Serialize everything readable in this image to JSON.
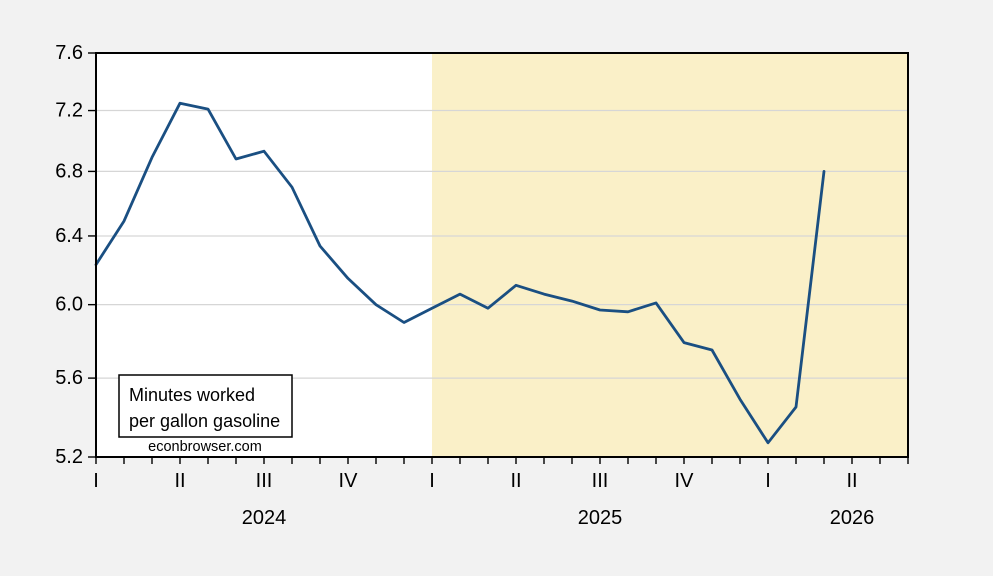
{
  "figure": {
    "background_color": "#f2f2f2",
    "plot_background_color": "#ffffff",
    "grid_color": "#d6d6d6",
    "axis_color": "#000000"
  },
  "chart_data": {
    "type": "line",
    "title": "Minutes worked per gallon gasoline",
    "legend": {
      "line1": "Minutes worked",
      "line2": "per gallon gasoline"
    },
    "watermark": "econbrowser.com",
    "y_axis": {
      "scale": "log",
      "min": 5.2,
      "max": 7.6,
      "tick_values": [
        7.6,
        7.2,
        6.8,
        6.4,
        6.0,
        5.6,
        5.2
      ],
      "tick_labels": [
        "7.6",
        "7.2",
        "6.8",
        "6.4",
        "6.0",
        "5.6",
        "5.2"
      ]
    },
    "x_axis": {
      "unit": "month",
      "start_label": "2024-01",
      "axis_months": 29,
      "quarter_ticks": [
        {
          "label": "I",
          "month": 0
        },
        {
          "label": "II",
          "month": 3
        },
        {
          "label": "III",
          "month": 6
        },
        {
          "label": "IV",
          "month": 9
        },
        {
          "label": "I",
          "month": 12
        },
        {
          "label": "II",
          "month": 15
        },
        {
          "label": "III",
          "month": 18
        },
        {
          "label": "IV",
          "month": 21
        },
        {
          "label": "I",
          "month": 24
        },
        {
          "label": "II",
          "month": 27
        }
      ],
      "year_labels": [
        {
          "label": "2024",
          "center_month": 6
        },
        {
          "label": "2025",
          "center_month": 18
        },
        {
          "label": "2026",
          "center_month": 27
        }
      ]
    },
    "shade_region": {
      "start_month": 12,
      "end_month": 29,
      "color": "#faf0c8"
    },
    "series": [
      {
        "name": "Minutes worked per gallon gasoline",
        "color": "#1a4f82",
        "start_month": 0,
        "first_period": "2024-01",
        "last_period": "2026-03",
        "monthly_values": [
          6.23,
          6.49,
          6.89,
          7.25,
          7.21,
          6.88,
          6.93,
          6.7,
          6.34,
          6.15,
          6.0,
          5.9,
          5.98,
          6.06,
          5.98,
          6.11,
          6.06,
          6.02,
          5.97,
          5.96,
          6.01,
          5.79,
          5.75,
          5.49,
          5.27,
          5.45,
          6.8
        ]
      }
    ]
  }
}
